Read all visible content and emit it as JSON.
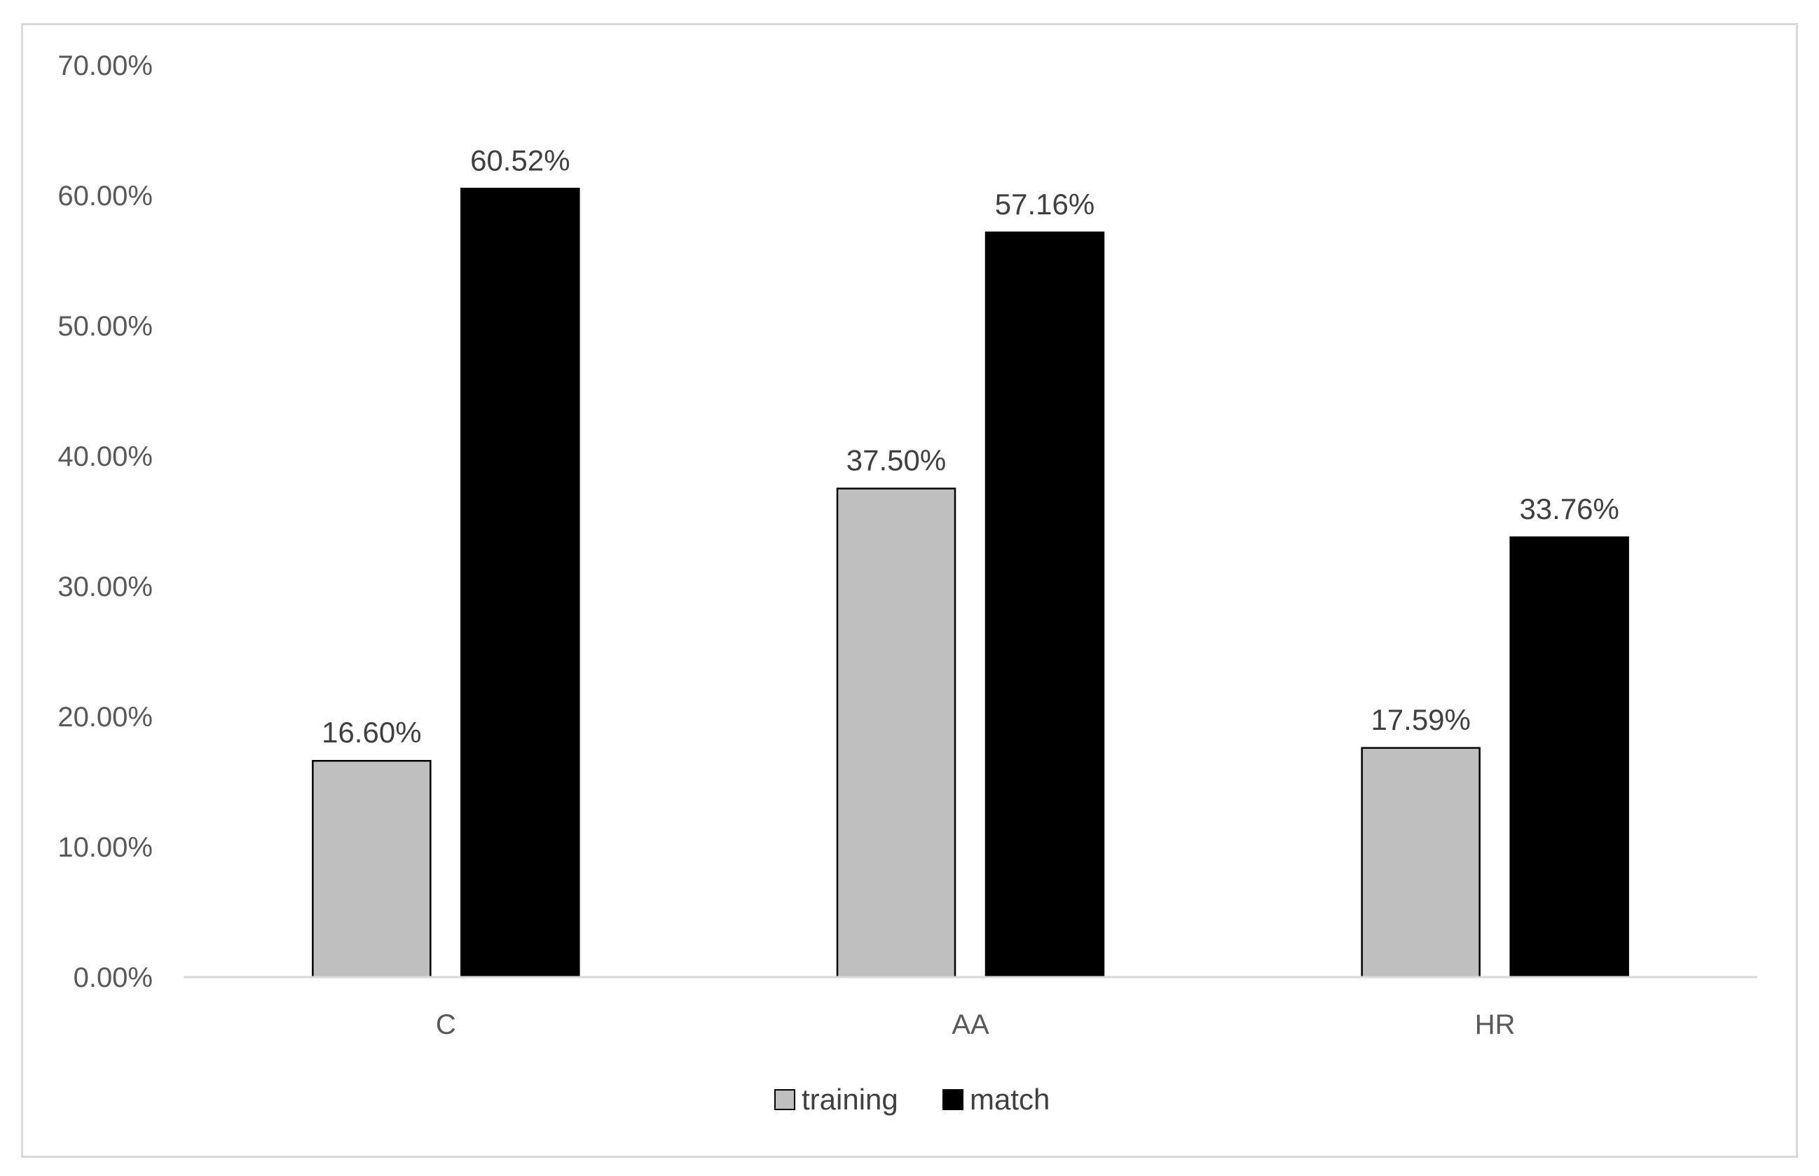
{
  "chart_data": {
    "type": "bar",
    "categories": [
      "C",
      "AA",
      "HR"
    ],
    "series": [
      {
        "name": "training",
        "values": [
          16.6,
          37.5,
          17.59
        ],
        "color": "#bfbfbf"
      },
      {
        "name": "match",
        "values": [
          60.52,
          57.16,
          33.76
        ],
        "color": "#000000"
      }
    ],
    "data_labels": [
      [
        "16.60%",
        "37.50%",
        "17.59%"
      ],
      [
        "60.52%",
        "57.16%",
        "33.76%"
      ]
    ],
    "ylim": [
      0,
      70
    ],
    "yticks": [
      0,
      10,
      20,
      30,
      40,
      50,
      60,
      70
    ],
    "ytick_labels": [
      "0.00%",
      "10.00%",
      "20.00%",
      "30.00%",
      "40.00%",
      "50.00%",
      "60.00%",
      "70.00%"
    ],
    "title": "",
    "xlabel": "",
    "ylabel": "",
    "grid": false,
    "legend_position": "bottom"
  }
}
